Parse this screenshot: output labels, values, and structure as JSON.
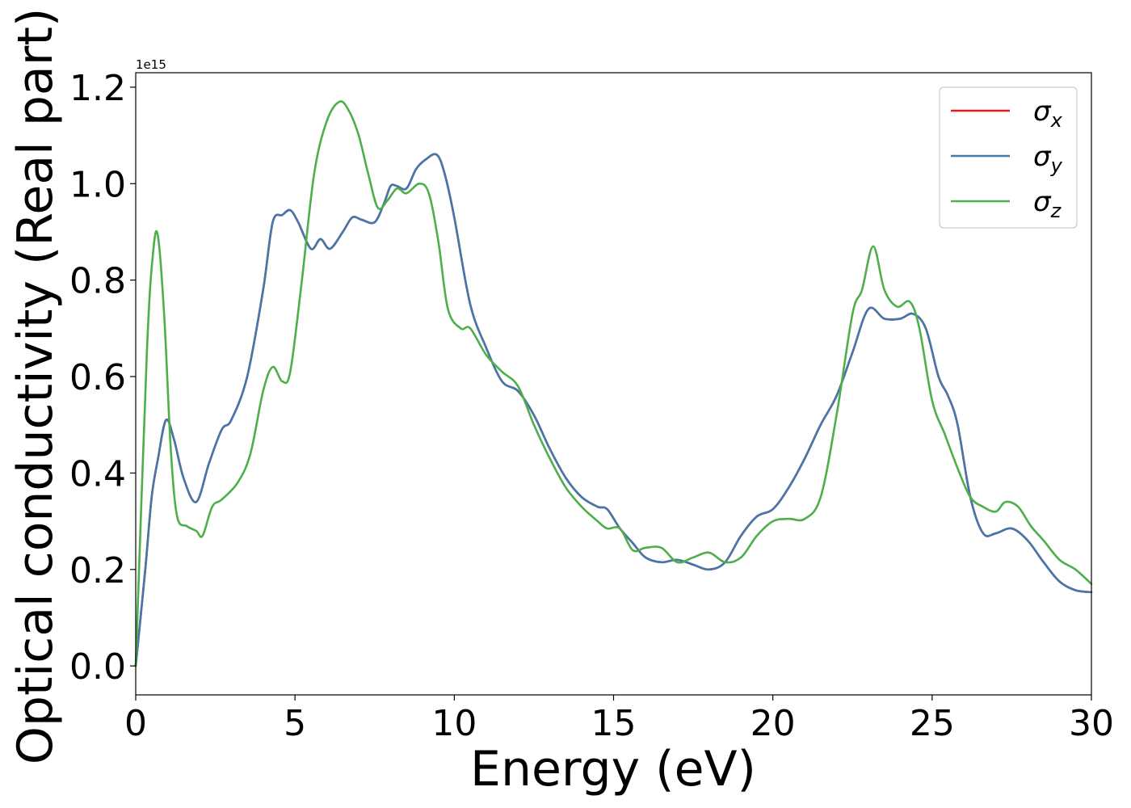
{
  "chart_data": {
    "type": "line",
    "xlabel": "Energy (eV)",
    "ylabel": "Optical conductivity (Real part)",
    "y_offset_label": "1e15",
    "xlim": [
      0,
      30
    ],
    "ylim": [
      -0.06,
      1.23
    ],
    "xticks": [
      0,
      5,
      10,
      15,
      20,
      25,
      30
    ],
    "xtick_labels": [
      "0",
      "5",
      "10",
      "15",
      "20",
      "25",
      "30"
    ],
    "yticks": [
      0.0,
      0.2,
      0.4,
      0.6,
      0.8,
      1.0,
      1.2
    ],
    "ytick_labels": [
      "0.0",
      "0.2",
      "0.4",
      "0.6",
      "0.8",
      "1.0",
      "1.2"
    ],
    "grid": false,
    "legend_position": "top-right",
    "series": [
      {
        "name": "σx",
        "symbol": "σ",
        "subscript": "x",
        "color": "#e41a1c",
        "x": [
          0,
          0.3,
          0.5,
          0.7,
          0.95,
          1.2,
          1.5,
          1.9,
          2.3,
          2.7,
          3.0,
          3.5,
          4.0,
          4.3,
          4.6,
          4.85,
          5.1,
          5.5,
          5.8,
          6.1,
          6.5,
          6.8,
          7.1,
          7.5,
          7.8,
          8.0,
          8.2,
          8.5,
          8.8,
          9.1,
          9.45,
          9.7,
          10.0,
          10.5,
          11.0,
          11.5,
          12.0,
          12.5,
          13.0,
          13.5,
          14.0,
          14.5,
          14.8,
          15.2,
          15.6,
          16.0,
          16.5,
          17.0,
          17.5,
          18.0,
          18.5,
          19.0,
          19.5,
          20.0,
          20.5,
          21.0,
          21.5,
          22.0,
          22.5,
          23.0,
          23.5,
          24.0,
          24.4,
          24.8,
          25.2,
          25.5,
          25.8,
          26.2,
          26.6,
          27.0,
          27.5,
          28.0,
          28.5,
          29.0,
          29.5,
          30.0
        ],
        "y": [
          0.0,
          0.2,
          0.35,
          0.43,
          0.51,
          0.47,
          0.39,
          0.34,
          0.42,
          0.49,
          0.51,
          0.6,
          0.78,
          0.92,
          0.935,
          0.945,
          0.92,
          0.865,
          0.885,
          0.865,
          0.9,
          0.93,
          0.925,
          0.92,
          0.96,
          0.995,
          0.995,
          0.99,
          1.03,
          1.05,
          1.06,
          1.02,
          0.93,
          0.75,
          0.66,
          0.59,
          0.57,
          0.52,
          0.45,
          0.39,
          0.35,
          0.33,
          0.325,
          0.285,
          0.255,
          0.225,
          0.215,
          0.22,
          0.21,
          0.2,
          0.215,
          0.27,
          0.31,
          0.325,
          0.37,
          0.43,
          0.5,
          0.56,
          0.65,
          0.74,
          0.72,
          0.72,
          0.73,
          0.7,
          0.6,
          0.56,
          0.5,
          0.35,
          0.275,
          0.275,
          0.285,
          0.26,
          0.215,
          0.175,
          0.157,
          0.153
        ]
      },
      {
        "name": "σy",
        "symbol": "σ",
        "subscript": "y",
        "color": "#4477aa",
        "x": [
          0,
          0.3,
          0.5,
          0.7,
          0.95,
          1.2,
          1.5,
          1.9,
          2.3,
          2.7,
          3.0,
          3.5,
          4.0,
          4.3,
          4.6,
          4.85,
          5.1,
          5.5,
          5.8,
          6.1,
          6.5,
          6.8,
          7.1,
          7.5,
          7.8,
          8.0,
          8.2,
          8.5,
          8.8,
          9.1,
          9.45,
          9.7,
          10.0,
          10.5,
          11.0,
          11.5,
          12.0,
          12.5,
          13.0,
          13.5,
          14.0,
          14.5,
          14.8,
          15.2,
          15.6,
          16.0,
          16.5,
          17.0,
          17.5,
          18.0,
          18.5,
          19.0,
          19.5,
          20.0,
          20.5,
          21.0,
          21.5,
          22.0,
          22.5,
          23.0,
          23.5,
          24.0,
          24.4,
          24.8,
          25.2,
          25.5,
          25.8,
          26.2,
          26.6,
          27.0,
          27.5,
          28.0,
          28.5,
          29.0,
          29.5,
          30.0
        ],
        "y": [
          0.0,
          0.2,
          0.35,
          0.43,
          0.51,
          0.47,
          0.39,
          0.34,
          0.42,
          0.49,
          0.51,
          0.6,
          0.78,
          0.92,
          0.935,
          0.945,
          0.92,
          0.865,
          0.885,
          0.865,
          0.9,
          0.93,
          0.925,
          0.92,
          0.96,
          0.995,
          0.995,
          0.99,
          1.03,
          1.05,
          1.06,
          1.02,
          0.93,
          0.75,
          0.66,
          0.59,
          0.57,
          0.52,
          0.45,
          0.39,
          0.35,
          0.33,
          0.325,
          0.285,
          0.255,
          0.225,
          0.215,
          0.22,
          0.21,
          0.2,
          0.215,
          0.27,
          0.31,
          0.325,
          0.37,
          0.43,
          0.5,
          0.56,
          0.65,
          0.74,
          0.72,
          0.72,
          0.73,
          0.7,
          0.6,
          0.56,
          0.5,
          0.35,
          0.275,
          0.275,
          0.285,
          0.26,
          0.215,
          0.175,
          0.157,
          0.153
        ]
      },
      {
        "name": "σz",
        "symbol": "σ",
        "subscript": "z",
        "color": "#4daf4a",
        "x": [
          0,
          0.35,
          0.55,
          0.7,
          0.9,
          1.1,
          1.3,
          1.6,
          1.9,
          2.1,
          2.4,
          2.7,
          3.2,
          3.6,
          4.0,
          4.3,
          4.6,
          4.85,
          5.2,
          5.6,
          6.0,
          6.4,
          6.7,
          7.0,
          7.3,
          7.6,
          7.9,
          8.2,
          8.5,
          8.9,
          9.2,
          9.5,
          9.8,
          10.2,
          10.5,
          11.0,
          11.5,
          12.0,
          12.5,
          13.0,
          13.5,
          14.0,
          14.5,
          14.8,
          15.2,
          15.6,
          16.0,
          16.5,
          17.0,
          17.5,
          18.0,
          18.5,
          19.0,
          19.5,
          20.0,
          20.5,
          21.0,
          21.5,
          22.0,
          22.5,
          22.8,
          23.15,
          23.5,
          23.9,
          24.3,
          24.6,
          25.0,
          25.4,
          25.8,
          26.2,
          26.6,
          27.0,
          27.3,
          27.7,
          28.1,
          28.5,
          29.0,
          29.5,
          30.0
        ],
        "y": [
          0.0,
          0.65,
          0.86,
          0.89,
          0.72,
          0.45,
          0.31,
          0.29,
          0.28,
          0.27,
          0.33,
          0.345,
          0.38,
          0.44,
          0.57,
          0.62,
          0.59,
          0.61,
          0.79,
          1.02,
          1.13,
          1.17,
          1.15,
          1.1,
          1.02,
          0.95,
          0.965,
          0.99,
          0.98,
          1.0,
          0.98,
          0.88,
          0.74,
          0.7,
          0.7,
          0.645,
          0.61,
          0.58,
          0.5,
          0.43,
          0.37,
          0.33,
          0.3,
          0.285,
          0.285,
          0.24,
          0.245,
          0.245,
          0.215,
          0.225,
          0.235,
          0.215,
          0.225,
          0.27,
          0.3,
          0.305,
          0.305,
          0.35,
          0.52,
          0.73,
          0.78,
          0.87,
          0.78,
          0.745,
          0.755,
          0.7,
          0.55,
          0.48,
          0.41,
          0.35,
          0.33,
          0.32,
          0.34,
          0.33,
          0.29,
          0.26,
          0.22,
          0.2,
          0.17
        ]
      }
    ]
  }
}
